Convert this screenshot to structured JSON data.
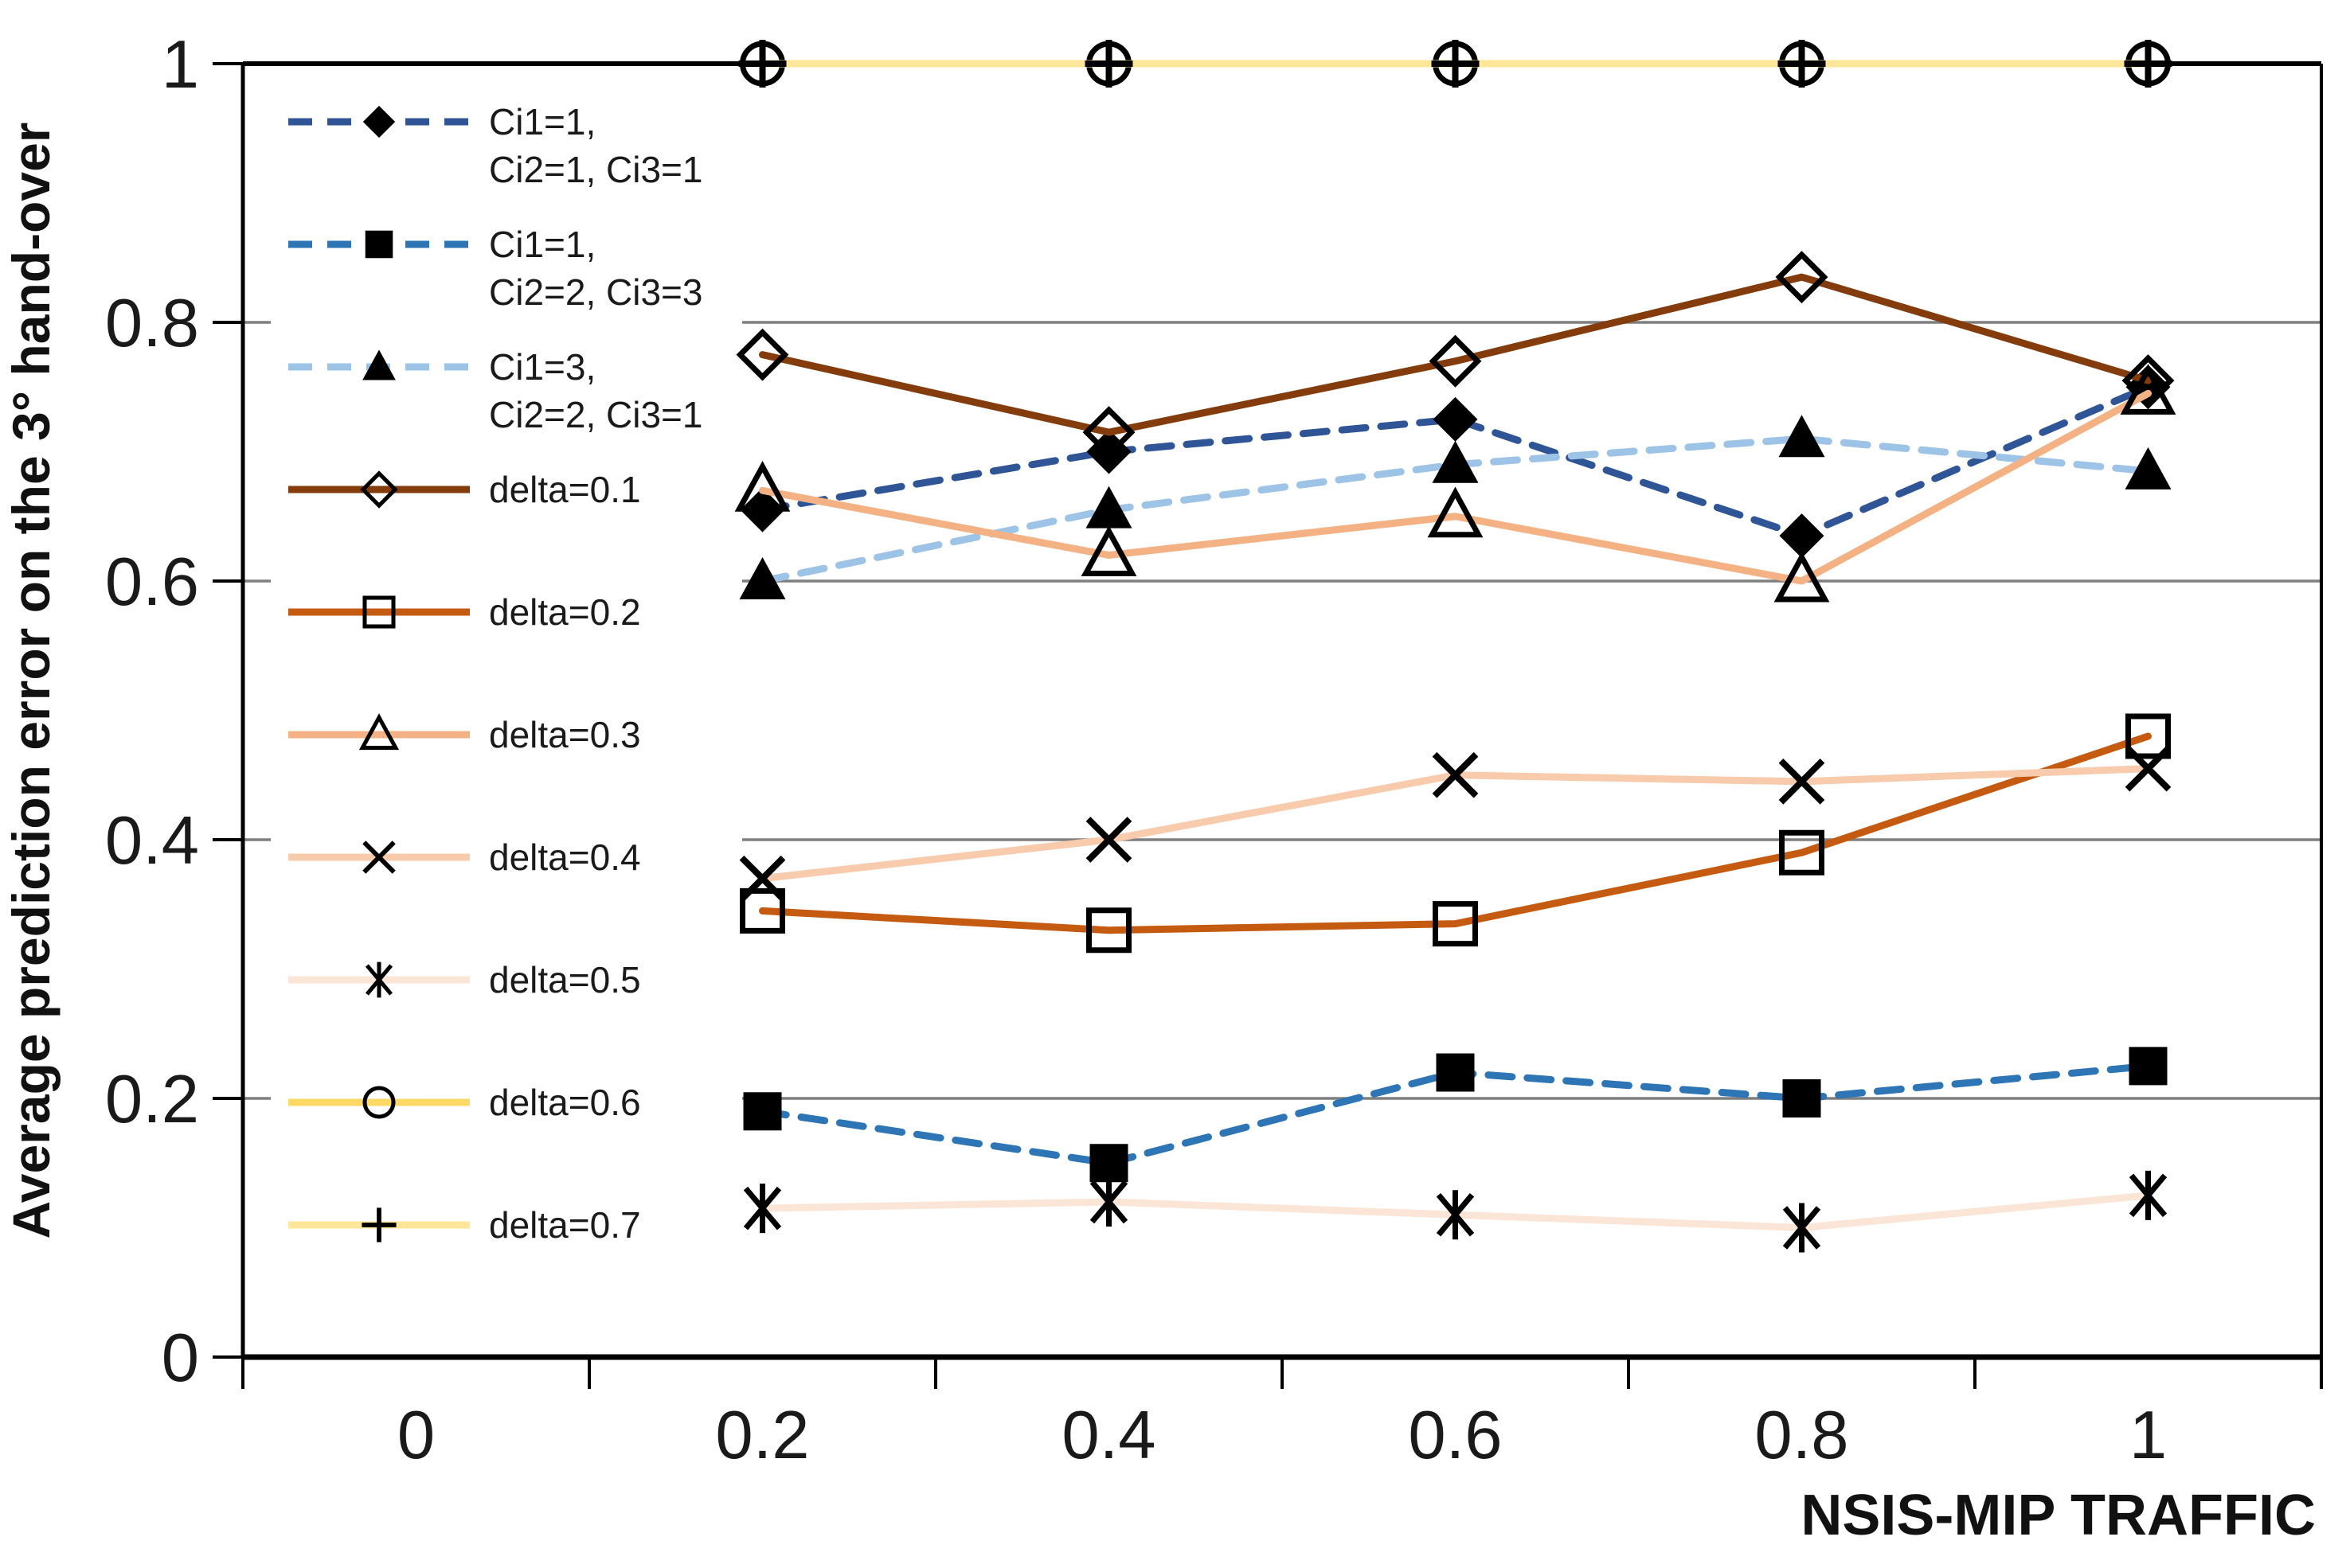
{
  "figure": {
    "y_axis_title": "Average prediction error on the 3° hand-over",
    "x_axis_title": "NSIS-MIP TRAFFIC"
  },
  "chart_data": {
    "type": "line",
    "title": "",
    "xlabel": "NSIS-MIP TRAFFIC",
    "ylabel": "Average prediction error on the 3° hand-over",
    "x": [
      0.2,
      0.4,
      0.6,
      0.8,
      1
    ],
    "xlim": [
      -0.1,
      1.1
    ],
    "ylim": [
      0,
      1
    ],
    "x_ticks": [
      0,
      0.2,
      0.4,
      0.6,
      0.8,
      1
    ],
    "x_tick_labels": [
      "0",
      "0.2",
      "0.4",
      "0.6",
      "0.8",
      "1"
    ],
    "y_ticks": [
      0,
      0.2,
      0.4,
      0.6,
      0.8,
      1
    ],
    "y_tick_labels": [
      "0",
      "0.2",
      "0.4",
      "0.6",
      "0.8",
      "1"
    ],
    "grid": "horizontal-gray",
    "legend_position": "inside-top-left",
    "series": [
      {
        "name": "Ci1=1, Ci2=1, Ci3=1",
        "legend_lines": [
          "Ci1=1,",
          "Ci2=1, Ci3=1"
        ],
        "color": "#2F5597",
        "line_style": "dashed",
        "marker": "diamond-filled",
        "values": [
          0.655,
          0.7,
          0.725,
          0.635,
          0.75
        ]
      },
      {
        "name": "Ci1=1, Ci2=2, Ci3=3",
        "legend_lines": [
          "Ci1=1,",
          "Ci2=2, Ci3=3"
        ],
        "color": "#2E75B6",
        "line_style": "dashed",
        "marker": "square-filled",
        "values": [
          0.19,
          0.15,
          0.22,
          0.2,
          0.225
        ]
      },
      {
        "name": "Ci1=3, Ci2=2, Ci3=1",
        "legend_lines": [
          "Ci1=3,",
          "Ci2=2, Ci3=1"
        ],
        "color": "#9DC3E6",
        "line_style": "dashed",
        "marker": "triangle-filled",
        "values": [
          0.6,
          0.655,
          0.69,
          0.71,
          0.685
        ]
      },
      {
        "name": "delta=0.1",
        "legend_lines": [
          "delta=0.1"
        ],
        "color": "#843C0C",
        "line_style": "solid",
        "marker": "diamond-open",
        "values": [
          0.775,
          0.715,
          0.77,
          0.835,
          0.755
        ]
      },
      {
        "name": "delta=0.2",
        "legend_lines": [
          "delta=0.2"
        ],
        "color": "#C55A11",
        "line_style": "solid",
        "marker": "square-open",
        "values": [
          0.345,
          0.33,
          0.335,
          0.39,
          0.48
        ]
      },
      {
        "name": "delta=0.3",
        "legend_lines": [
          "delta=0.3"
        ],
        "color": "#F4B183",
        "line_style": "solid",
        "marker": "triangle-open",
        "values": [
          0.67,
          0.62,
          0.65,
          0.6,
          0.745
        ]
      },
      {
        "name": "delta=0.4",
        "legend_lines": [
          "delta=0.4"
        ],
        "color": "#F8CBAD",
        "line_style": "solid",
        "marker": "x",
        "values": [
          0.37,
          0.4,
          0.45,
          0.445,
          0.455
        ]
      },
      {
        "name": "delta=0.5",
        "legend_lines": [
          "delta=0.5"
        ],
        "color": "#FBE5D6",
        "line_style": "solid",
        "marker": "asterisk",
        "values": [
          0.115,
          0.12,
          0.11,
          0.1,
          0.125
        ]
      },
      {
        "name": "delta=0.6",
        "legend_lines": [
          "delta=0.6"
        ],
        "color": "#FFD966",
        "line_style": "solid",
        "marker": "circle-open",
        "values": [
          1,
          1,
          1,
          1,
          1
        ]
      },
      {
        "name": "delta=0.7",
        "legend_lines": [
          "delta=0.7"
        ],
        "color": "#FFE699",
        "line_style": "solid",
        "marker": "plus",
        "values": [
          1,
          1,
          1,
          1,
          1
        ]
      }
    ]
  },
  "colors": {
    "gridline": "#7F7F7F",
    "axis": "#000000",
    "marker": "#000000",
    "tick_text": "#1A1A1A",
    "background": "#FFFFFF"
  }
}
